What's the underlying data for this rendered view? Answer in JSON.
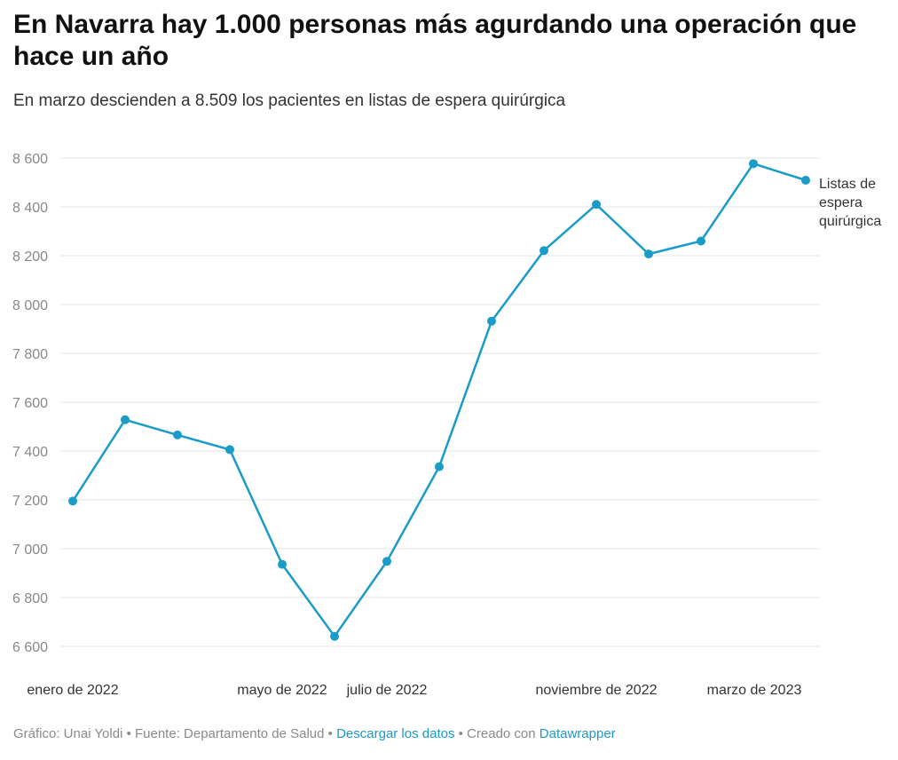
{
  "title": "En Navarra hay 1.000 personas más agurdando una operación que hace un año",
  "subtitle": "En marzo descienden a 8.509 los pacientes en listas de espera quirúrgica",
  "footer": {
    "credit": "Gráfico: Unai Yoldi • Fuente: Departamento de Salud • ",
    "download_link": "Descargar los datos",
    "created": " • Creado con ",
    "tool_link": "Datawrapper"
  },
  "colors": {
    "line": "#1a9bc8",
    "grid": "#e6e6e6",
    "tick_text": "#888888",
    "axis_text": "#333333"
  },
  "chart_data": {
    "type": "line",
    "title": "",
    "xlabel": "",
    "ylabel": "",
    "x": [
      "2022-01",
      "2022-02",
      "2022-03",
      "2022-04",
      "2022-05",
      "2022-06",
      "2022-07",
      "2022-08",
      "2022-09",
      "2022-10",
      "2022-11",
      "2022-12",
      "2023-01",
      "2023-02",
      "2023-03"
    ],
    "x_tick_labels": [
      {
        "x": "2022-01",
        "label": "enero de 2022"
      },
      {
        "x": "2022-05",
        "label": "mayo de 2022"
      },
      {
        "x": "2022-07",
        "label": "julio de 2022"
      },
      {
        "x": "2022-11",
        "label": "noviembre de 2022"
      },
      {
        "x": "2023-03",
        "label": "marzo de 2023"
      }
    ],
    "yticks": [
      6600,
      6800,
      7000,
      7200,
      7400,
      7600,
      7800,
      8000,
      8200,
      8400,
      8600
    ],
    "ytick_labels": [
      "6 600",
      "6 800",
      "7 000",
      "7 200",
      "7 400",
      "7 600",
      "7 800",
      "8 000",
      "8 200",
      "8 400",
      "8 600"
    ],
    "ylim": [
      6600,
      8600
    ],
    "grid": true,
    "series": [
      {
        "name": "Listas de espera quirúrgica",
        "label_lines": [
          "Listas de",
          "espera",
          "quirúrgica"
        ],
        "values": [
          7195,
          7528,
          7466,
          7406,
          6936,
          6641,
          6948,
          7336,
          7932,
          8221,
          8410,
          8207,
          8260,
          8577,
          8509
        ]
      }
    ]
  }
}
